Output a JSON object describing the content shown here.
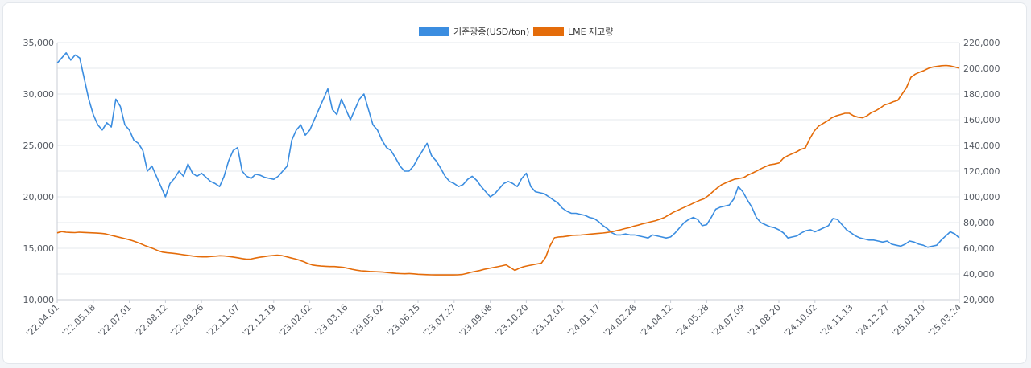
{
  "colors": {
    "copper": "#3b8de0",
    "stock": "#e46c0a",
    "grid": "#e6e9ee",
    "axis": "#c9ced6"
  },
  "chart_data": {
    "type": "line",
    "grid": true,
    "legend_position": "top-center",
    "x_tick_labels": [
      "'22.04.01",
      "'22.05.18",
      "'22.07.01",
      "'22.08.12",
      "'22.09.26",
      "'22.11.07",
      "'22.12.19",
      "'23.02.02",
      "'23.03.16",
      "'23.05.02",
      "'23.06.15",
      "'23.07.27",
      "'23.09.08",
      "'23.10.20",
      "'23.12.01",
      "'24.01.17",
      "'24.02.28",
      "'24.04.12",
      "'24.05.28",
      "'24.07.09",
      "'24.08.20",
      "'24.10.02",
      "'24.11.13",
      "'24.12.27",
      "'25.02.10",
      "'25.03.24"
    ],
    "y_left": {
      "min": 10000,
      "max": 35000,
      "ticks": [
        "10,000",
        "15,000",
        "20,000",
        "25,000",
        "30,000",
        "35,000"
      ]
    },
    "y_right": {
      "min": 20000,
      "max": 220000,
      "ticks": [
        "20,000",
        "40,000",
        "60,000",
        "80,000",
        "100,000",
        "120,000",
        "140,000",
        "160,000",
        "180,000",
        "200,000",
        "220,000"
      ]
    },
    "series": [
      {
        "name": "기준광종(USD/ton)",
        "axis": "left",
        "values": [
          33000,
          33500,
          34000,
          33300,
          33800,
          33500,
          31500,
          29500,
          28000,
          27000,
          26500,
          27200,
          26800,
          29500,
          28800,
          27000,
          26500,
          25500,
          25200,
          24500,
          22500,
          23000,
          22000,
          21000,
          20000,
          21300,
          21800,
          22500,
          22000,
          23200,
          22300,
          22000,
          22300,
          21900,
          21500,
          21300,
          21000,
          22000,
          23500,
          24500,
          24800,
          22500,
          22000,
          21800,
          22200,
          22100,
          21900,
          21800,
          21700,
          22000,
          22500,
          23000,
          25500,
          26500,
          27000,
          26000,
          26500,
          27500,
          28500,
          29500,
          30500,
          28500,
          28000,
          29500,
          28500,
          27500,
          28500,
          29500,
          30000,
          28500,
          27000,
          26500,
          25500,
          24800,
          24500,
          23800,
          23000,
          22500,
          22500,
          23000,
          23800,
          24500,
          25200,
          24000,
          23500,
          22800,
          22000,
          21500,
          21300,
          21000,
          21200,
          21700,
          22000,
          21600,
          21000,
          20500,
          20000,
          20300,
          20800,
          21300,
          21500,
          21300,
          21000,
          21800,
          22300,
          21000,
          20500,
          20400,
          20300,
          20000,
          19700,
          19400,
          18900,
          18600,
          18400,
          18400,
          18300,
          18200,
          18000,
          17900,
          17600,
          17200,
          16900,
          16500,
          16300,
          16300,
          16400,
          16300,
          16300,
          16200,
          16100,
          16000,
          16300,
          16200,
          16100,
          16000,
          16100,
          16500,
          17000,
          17500,
          17800,
          18000,
          17800,
          17200,
          17300,
          18000,
          18800,
          19000,
          19100,
          19200,
          19800,
          21000,
          20500,
          19700,
          19000,
          18000,
          17500,
          17300,
          17100,
          17000,
          16800,
          16500,
          16000,
          16100,
          16200,
          16500,
          16700,
          16800,
          16600,
          16800,
          17000,
          17200,
          17900,
          17800,
          17300,
          16800,
          16500,
          16200,
          16000,
          15900,
          15800,
          15800,
          15700,
          15600,
          15700,
          15400,
          15300,
          15200,
          15400,
          15700,
          15600,
          15400,
          15300,
          15100,
          15200,
          15300,
          15800,
          16200,
          16600,
          16400,
          16000
        ]
      },
      {
        "name": "LME 재고량",
        "axis": "right",
        "values": [
          72000,
          73000,
          72500,
          72300,
          72200,
          72500,
          72300,
          72100,
          72000,
          71800,
          71600,
          71200,
          70300,
          69500,
          68600,
          67800,
          67000,
          66000,
          64800,
          63500,
          62000,
          60800,
          59500,
          58000,
          57000,
          56500,
          56200,
          55800,
          55300,
          54800,
          54300,
          53900,
          53500,
          53300,
          53300,
          53600,
          53900,
          54200,
          54000,
          53600,
          53200,
          52600,
          52000,
          51500,
          51600,
          52400,
          53000,
          53500,
          54000,
          54300,
          54600,
          54400,
          53500,
          52600,
          51800,
          50800,
          49600,
          48100,
          47000,
          46500,
          46200,
          46000,
          45800,
          45800,
          45500,
          45200,
          44500,
          43700,
          43000,
          42500,
          42300,
          42000,
          41800,
          41700,
          41500,
          41100,
          40800,
          40500,
          40300,
          40200,
          40400,
          40100,
          39800,
          39600,
          39500,
          39400,
          39300,
          39300,
          39300,
          39400,
          39300,
          39400,
          39600,
          40400,
          41300,
          42000,
          42700,
          43600,
          44300,
          45000,
          45600,
          46300,
          47100,
          45000,
          42800,
          44500,
          45700,
          46500,
          47100,
          47800,
          48400,
          53000,
          62000,
          68200,
          68800,
          69000,
          69500,
          70000,
          70200,
          70300,
          70600,
          71000,
          71300,
          71600,
          71900,
          72300,
          72800,
          73600,
          74400,
          75300,
          76000,
          77200,
          78000,
          79000,
          79800,
          80700,
          81500,
          82700,
          84000,
          86000,
          88000,
          89500,
          91100,
          92600,
          94200,
          95800,
          97300,
          98500,
          101000,
          104000,
          107000,
          109500,
          111000,
          112500,
          113800,
          114300,
          115000,
          117000,
          118500,
          120200,
          122000,
          123600,
          125000,
          125500,
          126300,
          130000,
          132000,
          133500,
          135000,
          137000,
          138000,
          145000,
          151000,
          155000,
          157000,
          159000,
          161500,
          163000,
          164000,
          165000,
          165000,
          163000,
          162000,
          161500,
          163000,
          165500,
          167000,
          169000,
          171500,
          172500,
          174000,
          175000,
          180000,
          185000,
          193000,
          195500,
          197000,
          198300,
          200000,
          201000,
          201500,
          202000,
          202200,
          201800,
          201000,
          200000
        ]
      }
    ]
  }
}
